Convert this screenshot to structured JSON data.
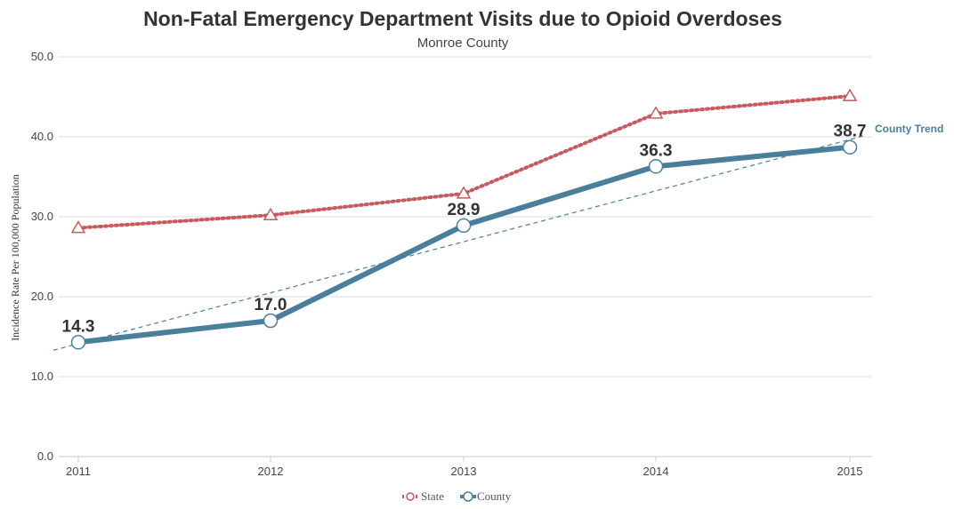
{
  "chart_data": {
    "type": "line",
    "title": "Non-Fatal Emergency Department Visits due to Opioid Overdoses",
    "subtitle": "Monroe County",
    "ylabel": "Incidence Rate Per 100,000 Population",
    "xlabel": "",
    "categories": [
      "2011",
      "2012",
      "2013",
      "2014",
      "2015"
    ],
    "ylim": [
      0,
      50
    ],
    "yticks": [
      "0.0",
      "10.0",
      "20.0",
      "30.0",
      "40.0",
      "50.0"
    ],
    "grid": true,
    "legend_position": "bottom-center",
    "series": [
      {
        "name": "State",
        "values": [
          28.6,
          30.2,
          32.9,
          42.9,
          45.1
        ],
        "color": "#c65a5e",
        "style": "dotted",
        "marker": "triangle-open"
      },
      {
        "name": "County",
        "values": [
          14.3,
          17.0,
          28.9,
          36.3,
          38.7
        ],
        "color": "#4a7f9c",
        "style": "solid",
        "marker": "circle-open",
        "data_labels": [
          "14.3",
          "17.0",
          "28.9",
          "36.3",
          "38.7"
        ]
      }
    ],
    "trend": {
      "name": "County Trend",
      "start": 13.3,
      "end": 40.1,
      "color": "#4a7f9c",
      "style": "dashed"
    }
  }
}
